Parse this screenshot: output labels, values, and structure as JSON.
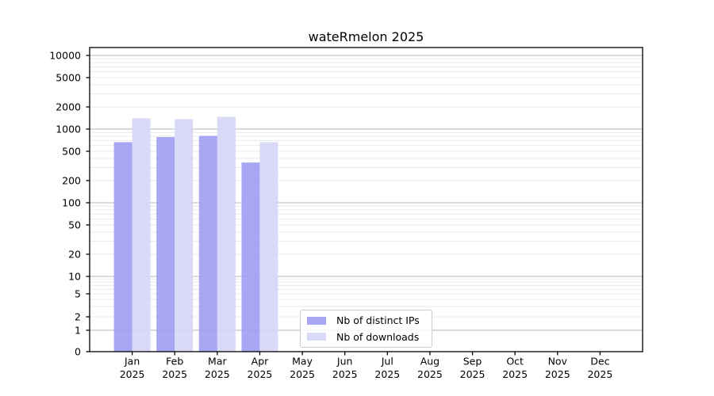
{
  "chart_data": {
    "type": "bar",
    "title": "wateRmelon 2025",
    "xlabel": "",
    "ylabel": "",
    "year": "2025",
    "categories": [
      "Jan",
      "Feb",
      "Mar",
      "Apr",
      "May",
      "Jun",
      "Jul",
      "Aug",
      "Sep",
      "Oct",
      "Nov",
      "Dec"
    ],
    "series": [
      {
        "name": "Nb of distinct IPs",
        "color": "#9f9ff2",
        "values": [
          665,
          780,
          810,
          352,
          null,
          null,
          null,
          null,
          null,
          null,
          null,
          null
        ]
      },
      {
        "name": "Nb of downloads",
        "color": "#d6d6f7",
        "values": [
          1400,
          1365,
          1470,
          665,
          null,
          null,
          null,
          null,
          null,
          null,
          null,
          null
        ]
      }
    ],
    "y_scale": "log (compressed/symlog below 10)",
    "y_ticks": [
      0,
      1,
      2,
      5,
      10,
      20,
      50,
      100,
      200,
      500,
      1000,
      2000,
      5000,
      10000
    ],
    "ylim": [
      0,
      14000
    ],
    "grid": {
      "major_on": true,
      "minor_on": true,
      "major_color": "#b4b4b4",
      "minor_color": "#e9e9e9"
    },
    "legend": {
      "position": "lower center inside plot",
      "border_color": "#cccccc"
    },
    "colors": {
      "axis": "#000000",
      "background": "#ffffff"
    }
  }
}
